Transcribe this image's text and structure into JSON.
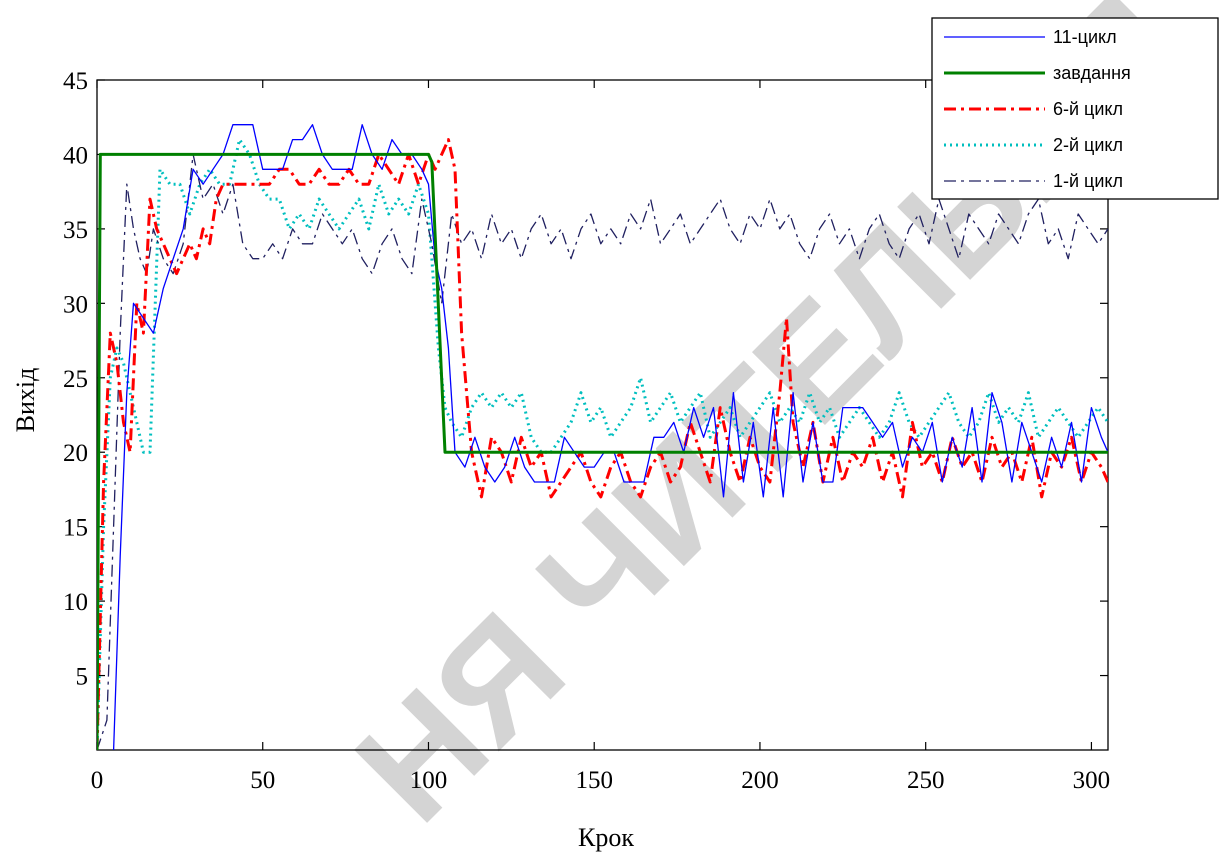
{
  "chart_data": {
    "type": "line",
    "xlabel": "Крок",
    "ylabel": "Вихід",
    "xlim": [
      0,
      305
    ],
    "ylim": [
      0,
      45
    ],
    "x_ticks": [
      {
        "value": 0,
        "label": "0"
      },
      {
        "value": 50,
        "label": "50"
      },
      {
        "value": 100,
        "label": "100"
      },
      {
        "value": 150,
        "label": "150"
      },
      {
        "value": 200,
        "label": "200"
      },
      {
        "value": 250,
        "label": "250"
      },
      {
        "value": 300,
        "label": "300"
      }
    ],
    "y_ticks": [
      {
        "value": 5,
        "label": "5"
      },
      {
        "value": 10,
        "label": "10"
      },
      {
        "value": 15,
        "label": "15"
      },
      {
        "value": 20,
        "label": "20"
      },
      {
        "value": 25,
        "label": "25"
      },
      {
        "value": 30,
        "label": "30"
      },
      {
        "value": 35,
        "label": "35"
      },
      {
        "value": 40,
        "label": "40"
      },
      {
        "value": 45,
        "label": "45"
      }
    ],
    "grid": false,
    "legend_position": "top-right",
    "watermark": "НЯ ЧИТЕЛЬНЯ",
    "series": [
      {
        "name": "11-цикл",
        "color": "#0000ff",
        "style": "solid",
        "width": 1.3,
        "x": [
          0,
          3,
          5,
          7,
          9,
          11,
          14,
          17,
          20,
          23,
          26,
          29,
          32,
          35,
          38,
          41,
          44,
          47,
          50,
          53,
          56,
          59,
          62,
          65,
          68,
          71,
          74,
          77,
          80,
          83,
          86,
          89,
          92,
          95,
          98,
          100,
          102,
          104,
          106,
          108,
          111,
          114,
          117,
          120,
          123,
          126,
          129,
          132,
          135,
          138,
          141,
          144,
          147,
          150,
          153,
          156,
          159,
          162,
          165,
          168,
          171,
          174,
          177,
          180,
          183,
          186,
          189,
          192,
          195,
          198,
          201,
          204,
          207,
          210,
          213,
          216,
          219,
          222,
          225,
          228,
          231,
          234,
          237,
          240,
          243,
          246,
          249,
          252,
          255,
          258,
          261,
          264,
          267,
          270,
          273,
          276,
          279,
          282,
          285,
          288,
          291,
          294,
          297,
          300,
          303,
          305
        ],
        "y": [
          0,
          -3,
          0,
          13,
          24,
          30,
          29,
          28,
          31,
          33,
          35,
          39,
          38,
          39,
          40,
          42,
          42,
          42,
          39,
          39,
          39,
          41,
          41,
          42,
          40,
          39,
          39,
          39,
          42,
          40,
          39,
          41,
          40,
          40,
          39,
          38,
          33,
          31,
          27,
          20,
          19,
          21,
          19,
          18,
          19,
          21,
          19,
          18,
          18,
          18,
          21,
          20,
          19,
          19,
          20,
          20,
          18,
          18,
          18,
          21,
          21,
          22,
          20,
          23,
          21,
          23,
          17,
          24,
          18,
          22,
          17,
          23,
          17,
          24,
          18,
          22,
          18,
          18,
          23,
          23,
          23,
          22,
          21,
          22,
          19,
          21,
          20,
          22,
          18,
          21,
          19,
          23,
          18,
          24,
          22,
          18,
          22,
          20,
          18,
          21,
          19,
          22,
          18,
          23,
          21,
          20
        ]
      },
      {
        "name": "завдання",
        "color": "#008000",
        "style": "solid",
        "width": 3,
        "x": [
          0,
          1,
          100,
          101,
          105,
          106,
          305
        ],
        "y": [
          0,
          40,
          40,
          39.5,
          20,
          20,
          20
        ]
      },
      {
        "name": "6-й цикл",
        "color": "#ff0000",
        "style": "dashdot",
        "width": 3,
        "x": [
          0,
          2,
          4,
          6,
          8,
          10,
          12,
          14,
          16,
          18,
          20,
          22,
          24,
          26,
          28,
          30,
          32,
          34,
          36,
          38,
          40,
          43,
          46,
          49,
          52,
          55,
          58,
          61,
          64,
          67,
          70,
          73,
          76,
          79,
          82,
          85,
          88,
          91,
          94,
          97,
          100,
          102,
          104,
          106,
          108,
          110,
          113,
          116,
          119,
          122,
          125,
          128,
          131,
          134,
          137,
          140,
          143,
          146,
          149,
          152,
          155,
          158,
          161,
          164,
          167,
          170,
          173,
          176,
          179,
          182,
          185,
          188,
          191,
          194,
          197,
          200,
          203,
          206,
          208,
          210,
          213,
          216,
          219,
          222,
          225,
          228,
          231,
          234,
          237,
          240,
          243,
          246,
          249,
          252,
          255,
          258,
          261,
          264,
          267,
          270,
          273,
          276,
          279,
          282,
          285,
          288,
          291,
          294,
          297,
          300,
          303,
          305
        ],
        "y": [
          0,
          18,
          28,
          26,
          22,
          20,
          30,
          28,
          37,
          35,
          34,
          33,
          32,
          33,
          34,
          33,
          35,
          34,
          37,
          38,
          38,
          38,
          38,
          38,
          38,
          39,
          39,
          38,
          38,
          39,
          38,
          38,
          39,
          38,
          38,
          40,
          39,
          38,
          40,
          38,
          40,
          39,
          40,
          41,
          39,
          28,
          20,
          17,
          21,
          20,
          18,
          21,
          19,
          20,
          17,
          18,
          19,
          20,
          18,
          17,
          19,
          20,
          18,
          17,
          19,
          20,
          18,
          19,
          22,
          20,
          18,
          23,
          20,
          18,
          21,
          19,
          18,
          24,
          29,
          22,
          19,
          22,
          18,
          21,
          18,
          20,
          19,
          21,
          18,
          20,
          17,
          22,
          19,
          20,
          18,
          21,
          19,
          20,
          18,
          21,
          19,
          20,
          18,
          21,
          17,
          20,
          19,
          21,
          18,
          20,
          19,
          18
        ]
      },
      {
        "name": "2-й цикл",
        "color": "#00bfbf",
        "style": "dotted",
        "width": 3,
        "x": [
          0,
          2,
          4,
          6,
          8,
          10,
          12,
          14,
          16,
          19,
          22,
          25,
          28,
          31,
          34,
          37,
          40,
          43,
          46,
          49,
          52,
          55,
          58,
          61,
          64,
          67,
          70,
          73,
          76,
          79,
          82,
          85,
          88,
          91,
          94,
          97,
          100,
          103,
          105,
          107,
          110,
          113,
          116,
          119,
          122,
          125,
          128,
          131,
          134,
          137,
          140,
          143,
          146,
          149,
          152,
          155,
          158,
          161,
          164,
          167,
          170,
          173,
          176,
          179,
          182,
          185,
          188,
          191,
          194,
          197,
          200,
          203,
          206,
          209,
          212,
          215,
          218,
          221,
          224,
          227,
          230,
          233,
          236,
          239,
          242,
          245,
          248,
          251,
          254,
          257,
          260,
          263,
          266,
          269,
          272,
          275,
          278,
          281,
          284,
          287,
          290,
          293,
          296,
          299,
          302,
          305
        ],
        "y": [
          0,
          15,
          25,
          27,
          26,
          24,
          22,
          20,
          20,
          39,
          38,
          38,
          36,
          38,
          39,
          38,
          38,
          41,
          40,
          38,
          37,
          37,
          35,
          36,
          35,
          37,
          36,
          35,
          36,
          37,
          35,
          38,
          36,
          37,
          36,
          38,
          36,
          27,
          23,
          22,
          21,
          23,
          24,
          23,
          24,
          23,
          24,
          21,
          20,
          20,
          21,
          22,
          24,
          22,
          23,
          21,
          22,
          23,
          25,
          22,
          23,
          24,
          22,
          23,
          24,
          21,
          22,
          23,
          21,
          22,
          23,
          24,
          22,
          23,
          22,
          24,
          22,
          23,
          21,
          22,
          23,
          22,
          21,
          22,
          24,
          22,
          21,
          22,
          23,
          24,
          22,
          21,
          22,
          24,
          22,
          23,
          22,
          24,
          21,
          22,
          23,
          22,
          21,
          22,
          23,
          22
        ]
      },
      {
        "name": "1-й цикл",
        "color": "#202060",
        "style": "dashdot",
        "width": 1.3,
        "x": [
          0,
          3,
          5,
          7,
          9,
          11,
          13,
          15,
          17,
          20,
          23,
          26,
          29,
          32,
          35,
          38,
          41,
          44,
          47,
          50,
          53,
          56,
          59,
          62,
          65,
          68,
          71,
          74,
          77,
          80,
          83,
          86,
          89,
          92,
          95,
          98,
          101,
          104,
          107,
          110,
          113,
          116,
          119,
          122,
          125,
          128,
          131,
          134,
          137,
          140,
          143,
          146,
          149,
          152,
          155,
          158,
          161,
          164,
          167,
          170,
          173,
          176,
          179,
          182,
          185,
          188,
          191,
          194,
          197,
          200,
          203,
          206,
          209,
          212,
          215,
          218,
          221,
          224,
          227,
          230,
          233,
          236,
          239,
          242,
          245,
          248,
          251,
          254,
          257,
          260,
          263,
          266,
          269,
          272,
          275,
          278,
          281,
          284,
          287,
          290,
          293,
          296,
          299,
          302,
          305
        ],
        "y": [
          0,
          2,
          15,
          28,
          38,
          35,
          33,
          32,
          35,
          33,
          32,
          34,
          40,
          37,
          38,
          36,
          38,
          34,
          33,
          33,
          34,
          33,
          35,
          34,
          34,
          36,
          35,
          34,
          35,
          33,
          32,
          34,
          35,
          33,
          32,
          37,
          34,
          30,
          36,
          34,
          35,
          33,
          36,
          34,
          35,
          33,
          35,
          36,
          34,
          35,
          33,
          35,
          36,
          34,
          35,
          34,
          36,
          35,
          37,
          34,
          35,
          36,
          34,
          35,
          36,
          37,
          35,
          34,
          36,
          35,
          37,
          35,
          36,
          34,
          33,
          35,
          36,
          34,
          35,
          33,
          35,
          36,
          34,
          33,
          35,
          36,
          34,
          37,
          35,
          33,
          36,
          35,
          34,
          36,
          35,
          34,
          36,
          37,
          34,
          35,
          33,
          36,
          35,
          34,
          35
        ]
      }
    ]
  }
}
